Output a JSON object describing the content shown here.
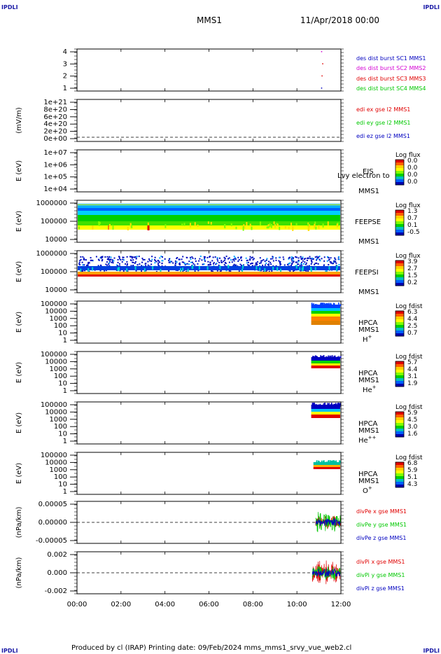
{
  "corners": {
    "tl": "IPDLI",
    "tr": "IPDLI",
    "bl": "IPDLI",
    "br": "IPDLI"
  },
  "header": {
    "spacecraft": "MMS1",
    "date": "11/Apr/2018 00:00"
  },
  "footer": "Produced by cl (IRAP)   Printing date: 09/Feb/2024   mms_mms1_srvy_vue_web2.cl",
  "colors": {
    "red": "#e00000",
    "green": "#00c800",
    "blue": "#0000c0",
    "magenta": "#d400d4"
  },
  "chart_data": {
    "type": "multi-panel time series / spectrograms",
    "x": {
      "range_hours": [
        0,
        12
      ],
      "ticks": [
        "00:00",
        "02:00",
        "04:00",
        "06:00",
        "08:00",
        "10:00",
        "12:00"
      ]
    },
    "panels": [
      {
        "id": "des",
        "type": "scatter",
        "ylabel": "",
        "yticks": [
          "1",
          "2",
          "3",
          "4"
        ],
        "legend": [
          {
            "text": "des dist burst SC1 MMS1",
            "color": "#0000c0"
          },
          {
            "text": "des dist burst SC2 MMS2",
            "color": "#d400d4"
          },
          {
            "text": "des dist burst SC3 MMS3",
            "color": "#e00000"
          },
          {
            "text": "des dist burst SC4 MMS4",
            "color": "#00c800"
          }
        ],
        "points": [
          {
            "t": 11.1,
            "y": 4,
            "color": "#d400d4"
          },
          {
            "t": 11.15,
            "y": 3,
            "color": "#e00000"
          },
          {
            "t": 11.12,
            "y": 2,
            "color": "#e00000"
          },
          {
            "t": 11.1,
            "y": 1,
            "color": "#0000c0"
          }
        ]
      },
      {
        "id": "edi",
        "type": "line",
        "ylabel": "(mV/m)",
        "yticks": [
          "0e+00",
          "2e+20",
          "4e+20",
          "6e+20",
          "8e+20",
          "1e+21"
        ],
        "legend": [
          {
            "text": "edi ex gse l2 MMS1",
            "color": "#e00000"
          },
          {
            "text": "edi ey gse l2 MMS1",
            "color": "#00c800"
          },
          {
            "text": "edi ez gse l2 MMS1",
            "color": "#0000c0"
          }
        ]
      },
      {
        "id": "eis",
        "type": "heatmap",
        "ylabel": "E (eV)",
        "yticks": [
          "1e+04",
          "1e+05",
          "1e+06",
          "1e+07"
        ],
        "labels": [
          "EIS",
          "MMS1"
        ],
        "overlay_text": "Lvy electron to",
        "cbar": {
          "title": "Log flux",
          "ticks": [
            "0.0",
            "0.0",
            "0.0",
            "0.0"
          ]
        }
      },
      {
        "id": "feepse",
        "type": "heatmap",
        "ylabel": "E (eV)",
        "yticks": [
          "10000",
          "100000",
          "1000000"
        ],
        "labels": [
          "FEEPSE",
          "MMS1"
        ],
        "cbar": {
          "title": "Log flux",
          "ticks": [
            "1.3",
            "0.7",
            "0.1",
            "-0.5"
          ]
        }
      },
      {
        "id": "feepsi",
        "type": "heatmap",
        "ylabel": "E (eV)",
        "yticks": [
          "10000",
          "100000",
          "1000000"
        ],
        "labels": [
          "FEEPSI",
          "MMS1"
        ],
        "cbar": {
          "title": "Log flux",
          "ticks": [
            "3.9",
            "2.7",
            "1.5",
            "0.2"
          ]
        }
      },
      {
        "id": "hpca_h",
        "type": "heatmap",
        "ylabel": "E (eV)",
        "yticks": [
          "1",
          "10",
          "100",
          "1000",
          "10000",
          "100000"
        ],
        "labels": [
          "HPCA",
          "MMS1"
        ],
        "species": "H",
        "charge": "+",
        "cbar": {
          "title": "Log fdist",
          "ticks": [
            "6.3",
            "4.4",
            "2.5",
            "0.7"
          ]
        }
      },
      {
        "id": "hpca_he",
        "type": "heatmap",
        "ylabel": "E (eV)",
        "yticks": [
          "1",
          "10",
          "100",
          "1000",
          "10000",
          "100000"
        ],
        "labels": [
          "HPCA",
          "MMS1"
        ],
        "species": "He",
        "charge": "+",
        "cbar": {
          "title": "Log fdist",
          "ticks": [
            "5.7",
            "4.4",
            "3.1",
            "1.9"
          ]
        }
      },
      {
        "id": "hpca_hepp",
        "type": "heatmap",
        "ylabel": "E (eV)",
        "yticks": [
          "1",
          "10",
          "100",
          "1000",
          "10000",
          "100000"
        ],
        "labels": [
          "HPCA",
          "MMS1"
        ],
        "species": "He",
        "charge": "++",
        "cbar": {
          "title": "Log fdist",
          "ticks": [
            "5.9",
            "4.5",
            "3.0",
            "1.6"
          ]
        }
      },
      {
        "id": "hpca_o",
        "type": "heatmap",
        "ylabel": "E (eV)",
        "yticks": [
          "1",
          "10",
          "100",
          "1000",
          "10000",
          "100000"
        ],
        "labels": [
          "HPCA",
          "MMS1"
        ],
        "species": "O",
        "charge": "+",
        "cbar": {
          "title": "Log fdist",
          "ticks": [
            "6.8",
            "5.9",
            "5.1",
            "4.3"
          ]
        }
      },
      {
        "id": "divpe",
        "type": "line",
        "ylabel": "(nPa/km)",
        "yticks": [
          "-0.00005",
          "0.00000",
          "0.00005"
        ],
        "legend": [
          {
            "text": "divPe x gse MMS1",
            "color": "#e00000"
          },
          {
            "text": "divPe y gse MMS1",
            "color": "#00c800"
          },
          {
            "text": "divPe z gse MMS1",
            "color": "#0000c0"
          }
        ]
      },
      {
        "id": "divpi",
        "type": "line",
        "ylabel": "(nPa/km)",
        "yticks": [
          "-0.002",
          "0.000",
          "0.002"
        ],
        "legend": [
          {
            "text": "divPi x gse MMS1",
            "color": "#e00000"
          },
          {
            "text": "divPi y gse MMS1",
            "color": "#00c800"
          },
          {
            "text": "divPi z gse MMS1",
            "color": "#0000c0"
          }
        ]
      }
    ]
  }
}
